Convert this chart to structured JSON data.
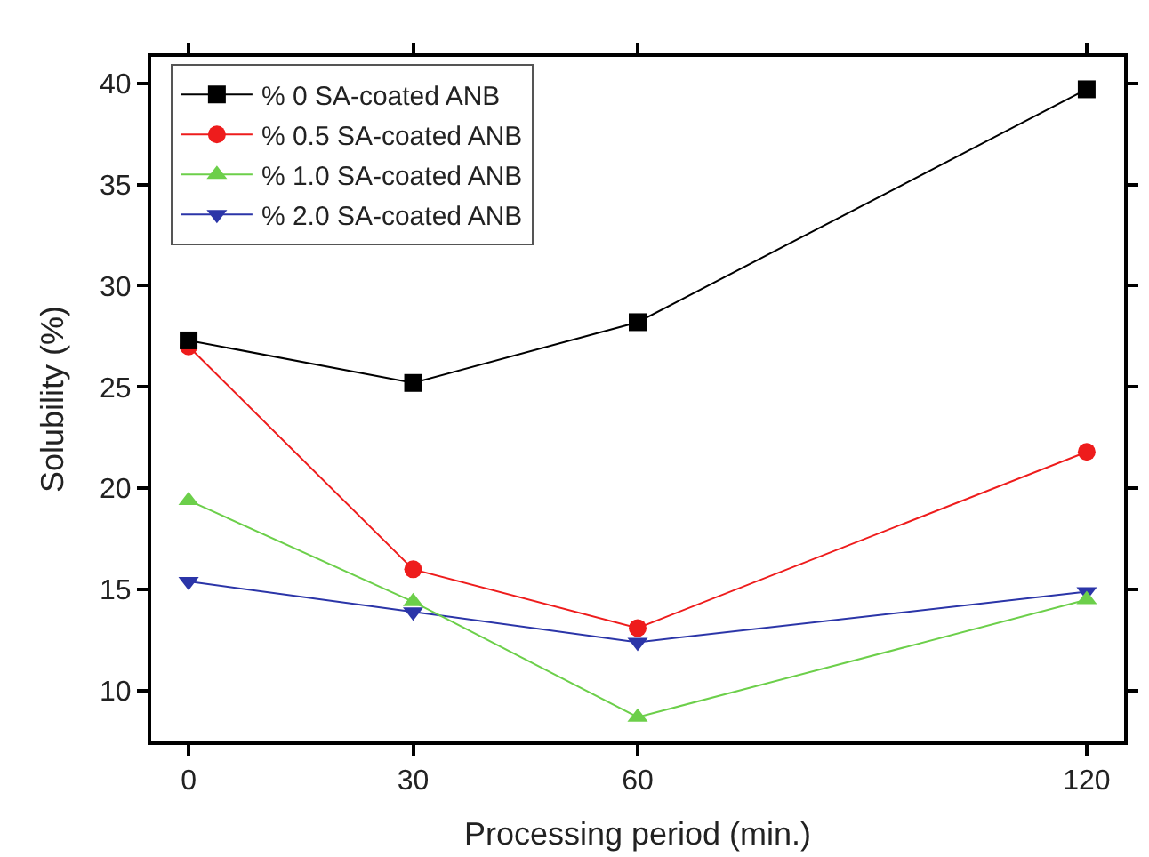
{
  "chart_data": {
    "type": "line",
    "xlabel": "Processing period (min.)",
    "ylabel": "Solubility (%)",
    "x": [
      0,
      30,
      60,
      120
    ],
    "series": [
      {
        "name": "% 0 SA-coated ANB",
        "color": "#000000",
        "marker": "square",
        "values": [
          27.3,
          25.2,
          28.2,
          39.7
        ]
      },
      {
        "name": "% 0.5 SA-coated ANB",
        "color": "#ee1c1c",
        "marker": "circle",
        "values": [
          27.0,
          16.0,
          13.1,
          21.8
        ]
      },
      {
        "name": "% 1.0 SA-coated ANB",
        "color": "#6ccf4a",
        "marker": "triangle",
        "values": [
          19.4,
          14.4,
          8.7,
          14.5
        ]
      },
      {
        "name": "% 2.0 SA-coated ANB",
        "color": "#2b35a8",
        "marker": "triangle-down",
        "values": [
          15.4,
          13.9,
          12.4,
          14.9
        ]
      }
    ],
    "xlim": [
      -5,
      125
    ],
    "xticks": [
      0,
      30,
      60,
      120
    ],
    "ylim": [
      7.5,
      41.3
    ],
    "yticks": [
      10,
      15,
      20,
      25,
      30,
      35,
      40
    ],
    "legend": "top left",
    "line_style": "solid"
  }
}
